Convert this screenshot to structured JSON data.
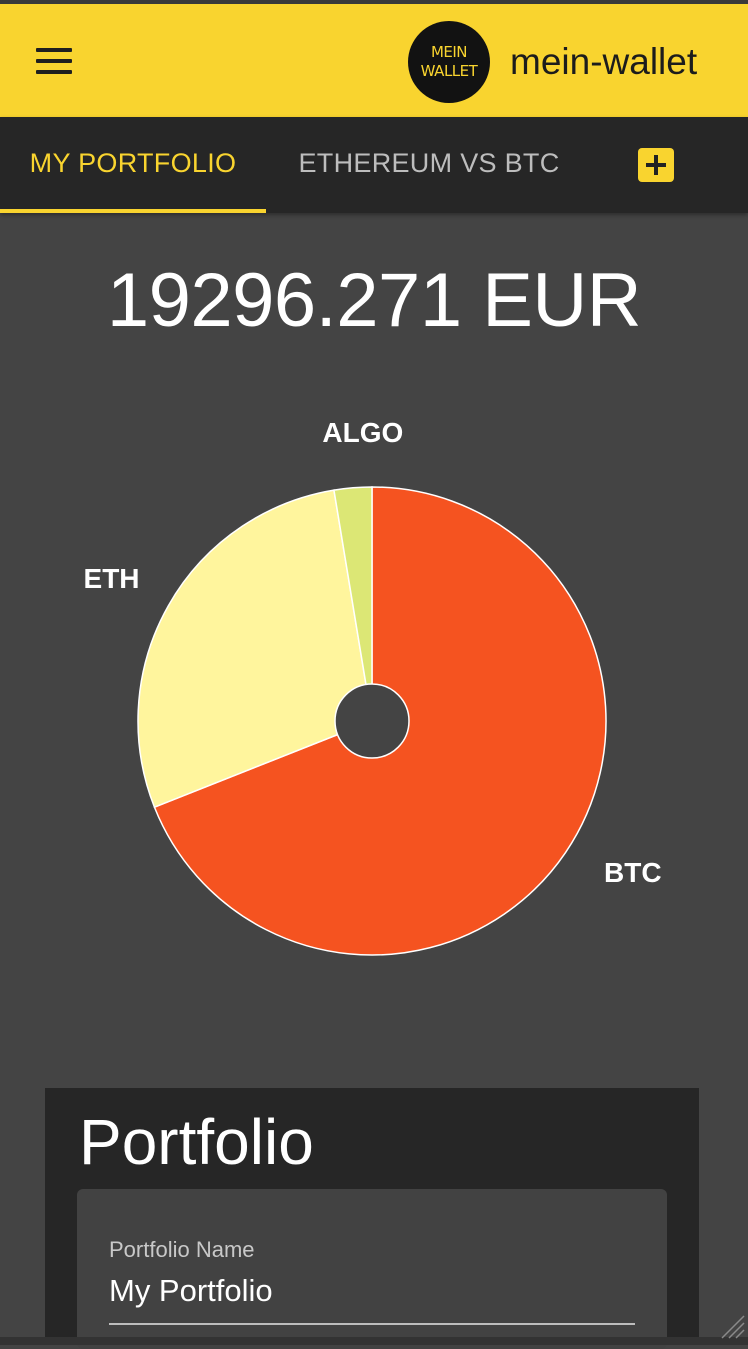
{
  "app": {
    "title": "mein-wallet",
    "logo_line1": "MEIN",
    "logo_line2": "WALLET",
    "accent_color": "#f9d42f"
  },
  "tabs": [
    {
      "label": "MY PORTFOLIO",
      "active": true
    },
    {
      "label": "ETHEREUM VS BTC",
      "active": false
    }
  ],
  "icons": {
    "menu": "hamburger-menu-icon",
    "add_tab": "plus-icon"
  },
  "total": {
    "value": "19296.271 EUR"
  },
  "chart_data": {
    "type": "pie",
    "categories": [
      "BTC",
      "ETH",
      "ALGO"
    ],
    "values": [
      69,
      28.4,
      2.6
    ],
    "colors": [
      "#f55320",
      "#fff59d",
      "#dce775"
    ],
    "donut_hole": true
  },
  "portfolio_card": {
    "title": "Portfolio",
    "name_field_label": "Portfolio Name",
    "name_field_value": "My Portfolio"
  }
}
